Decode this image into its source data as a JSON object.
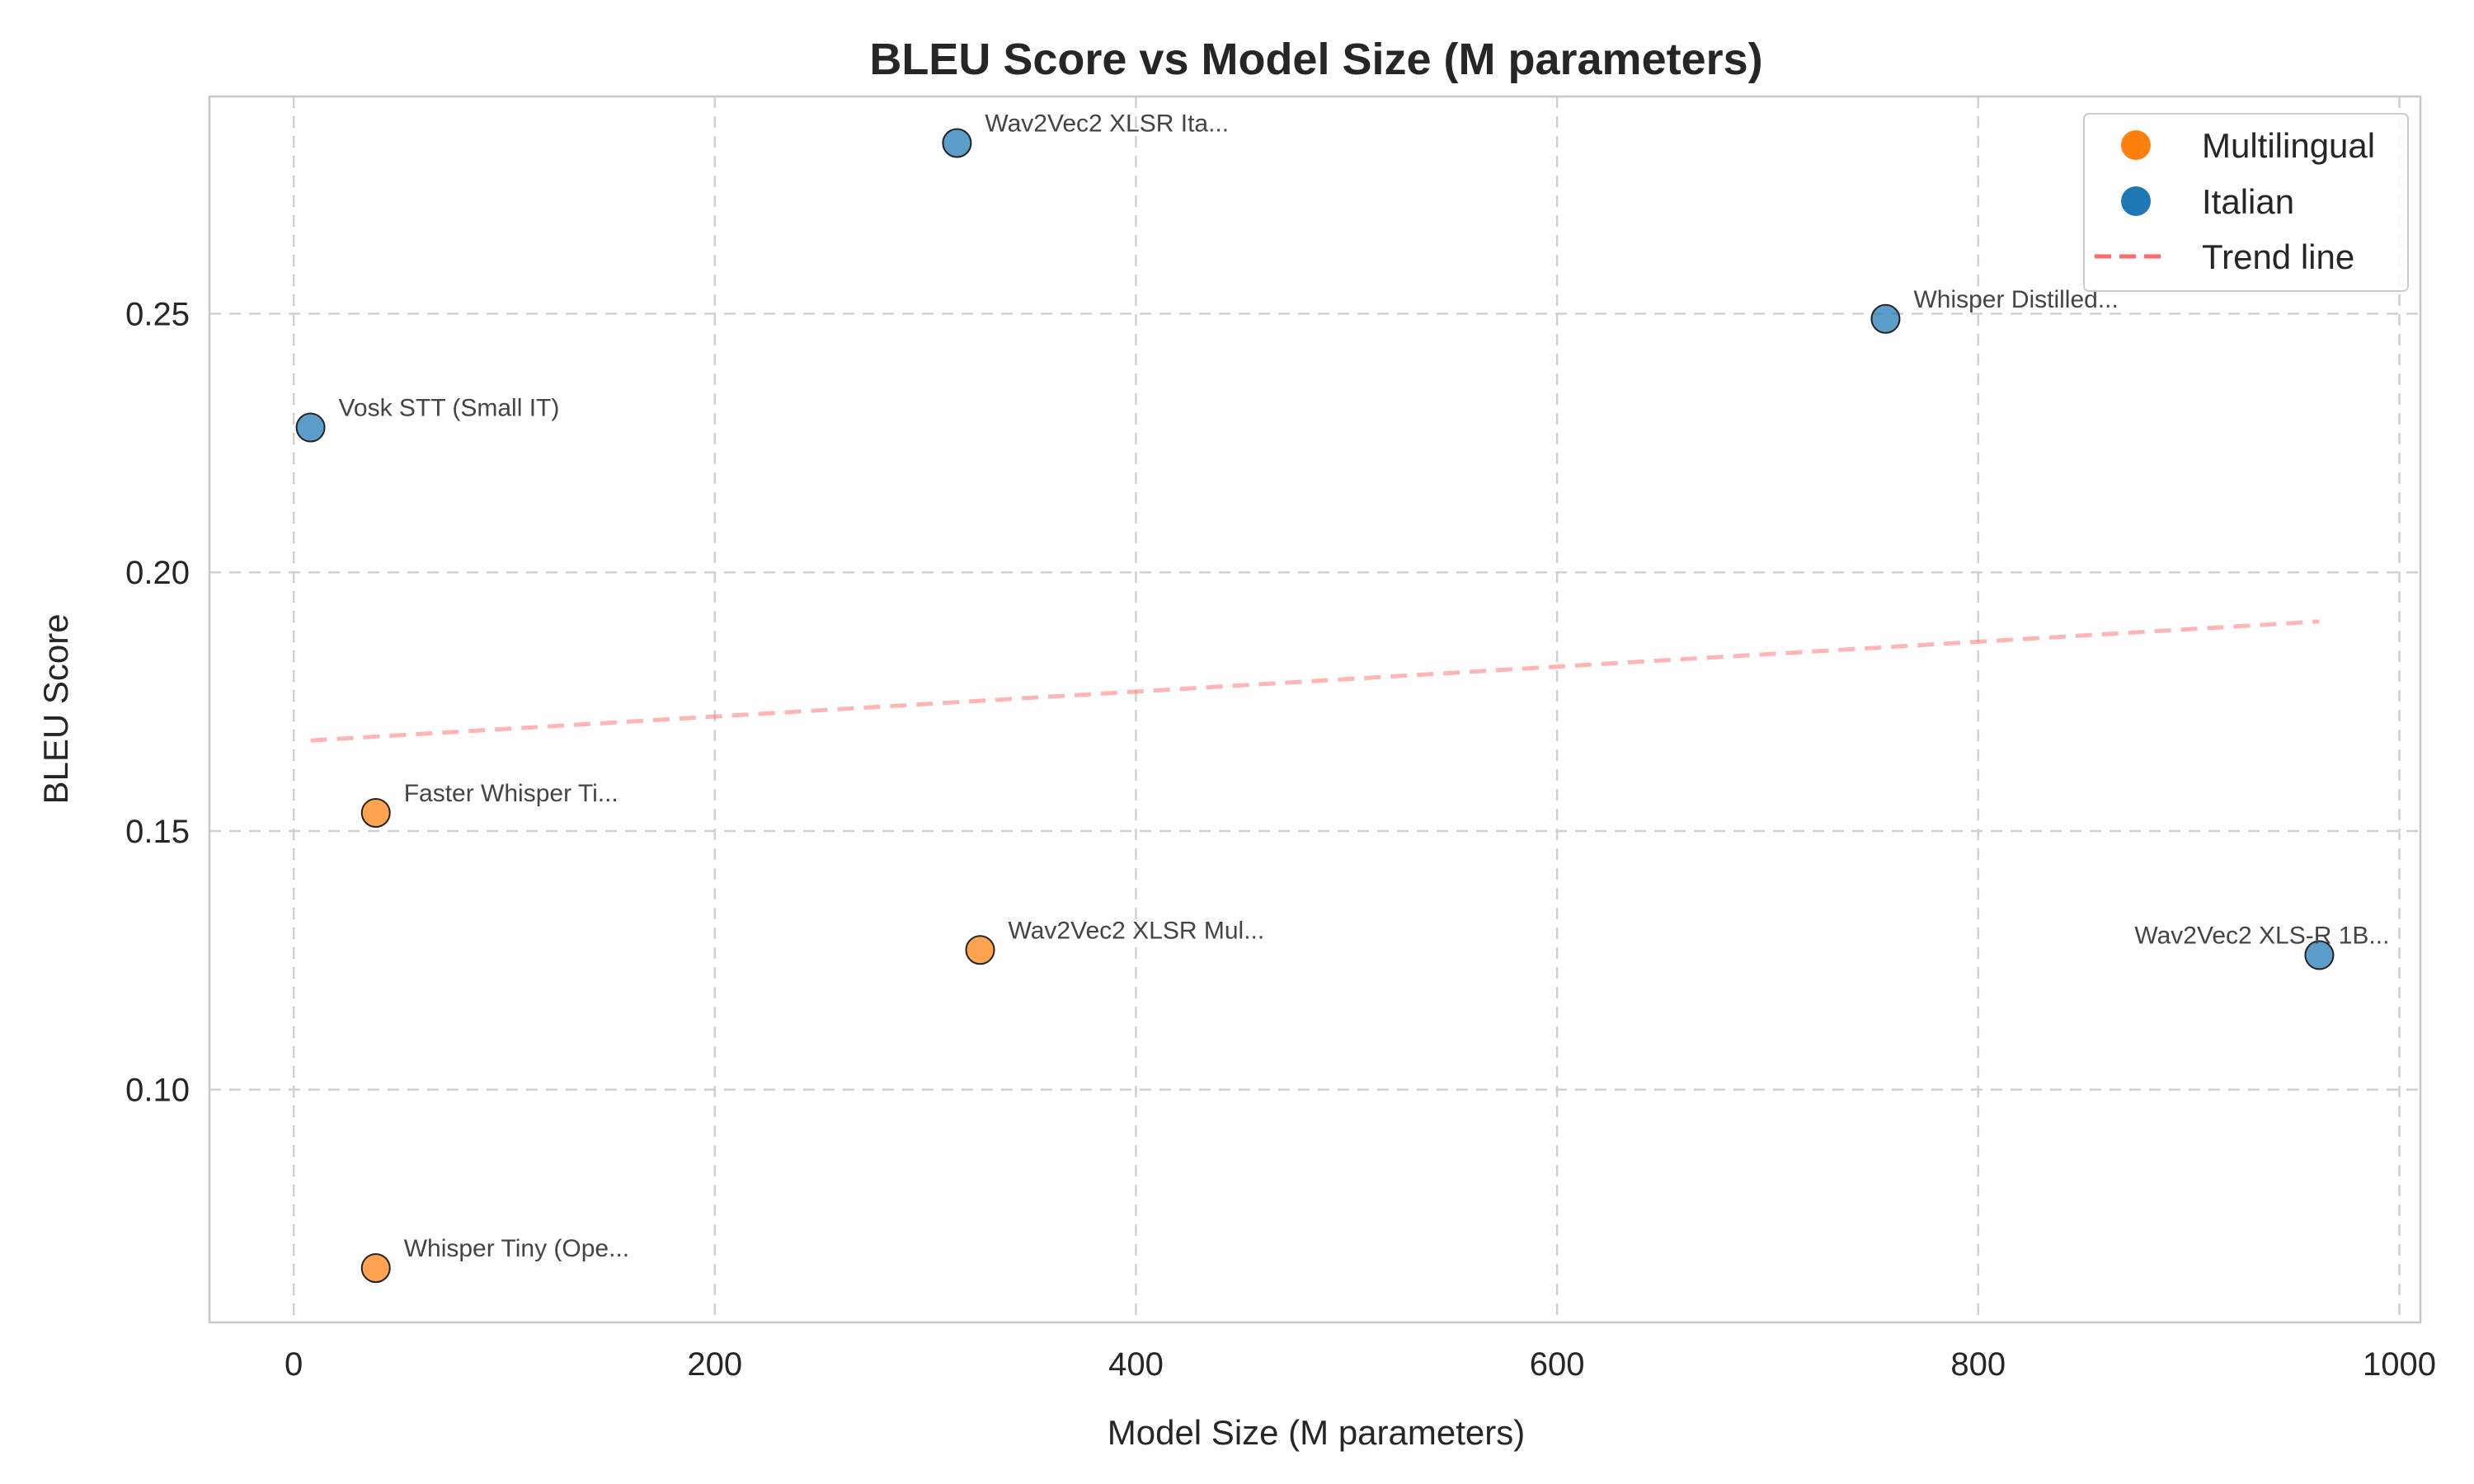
{
  "chart_data": {
    "type": "scatter",
    "title": "BLEU Score vs Model Size (M parameters)",
    "xlabel": "Model Size (M parameters)",
    "ylabel": "BLEU Score",
    "xlim": [
      -40,
      1010
    ],
    "ylim": [
      0.055,
      0.292
    ],
    "xticks": [
      0,
      200,
      400,
      600,
      800,
      1000
    ],
    "yticks": [
      0.1,
      0.15,
      0.2,
      0.25
    ],
    "grid": true,
    "legend_position": "top-right",
    "colors": {
      "Multilingual": "#ff7f0e",
      "Italian": "#1f77b4",
      "trend": "#ff6b6b"
    },
    "series": [
      {
        "name": "Multilingual",
        "points": [
          {
            "label": "Faster Whisper Ti...",
            "x": 39,
            "y": 0.1535
          },
          {
            "label": "Wav2Vec2 XLSR Mul...",
            "x": 326,
            "y": 0.127
          },
          {
            "label": "Whisper Tiny (Ope...",
            "x": 39,
            "y": 0.0655
          }
        ]
      },
      {
        "name": "Italian",
        "points": [
          {
            "label": "Wav2Vec2 XLSR Ita...",
            "x": 315,
            "y": 0.283
          },
          {
            "label": "Whisper Distilled...",
            "x": 756,
            "y": 0.249
          },
          {
            "label": "Vosk STT (Small IT)",
            "x": 8,
            "y": 0.228
          },
          {
            "label": "Wav2Vec2 XLS-R 1B...",
            "x": 962,
            "y": 0.126
          }
        ]
      }
    ],
    "trend_line": {
      "name": "Trend line",
      "x": [
        8,
        962
      ],
      "y": [
        0.1675,
        0.1905
      ]
    },
    "legend": [
      "Multilingual",
      "Italian",
      "Trend line"
    ]
  }
}
